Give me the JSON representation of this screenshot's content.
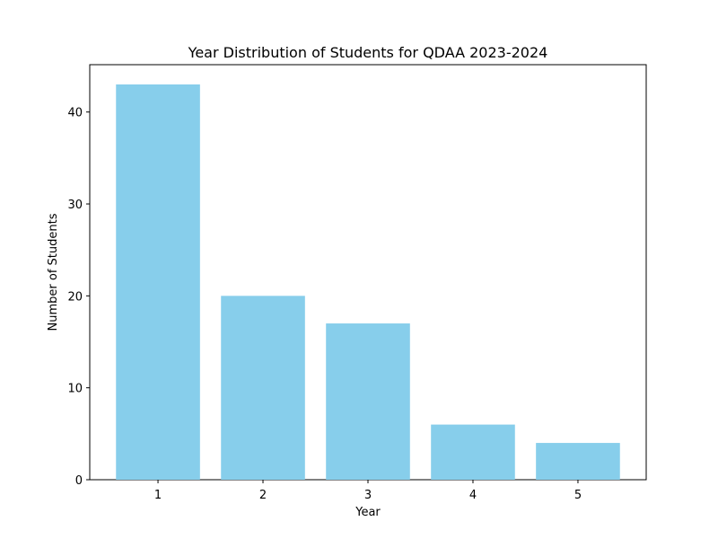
{
  "chart_data": {
    "type": "bar",
    "title": "Year Distribution of Students for QDAA 2023-2024",
    "xlabel": "Year",
    "ylabel": "Number of Students",
    "categories": [
      "1",
      "2",
      "3",
      "4",
      "5"
    ],
    "values": [
      43,
      20,
      17,
      6,
      4
    ],
    "ylim": [
      0,
      45.15
    ],
    "yticks": [
      0,
      10,
      20,
      30,
      40
    ],
    "bar_color": "#87ceeb",
    "grid": false,
    "legend": "none"
  }
}
